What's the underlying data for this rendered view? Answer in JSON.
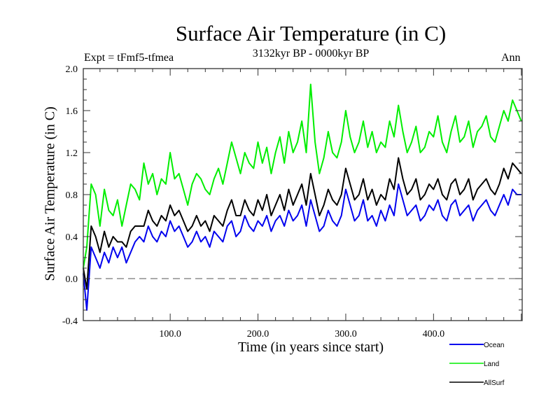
{
  "chart_data": {
    "type": "line",
    "title": "Surface Air Temperature (in C)",
    "subtitle": "3132kyr BP - 0000kyr BP",
    "experiment_label": "Expt = tFmf5-tfmea",
    "season_label": "Ann",
    "xlabel": "Time (in years since start)",
    "ylabel": "Surface Air Temperature (in C)",
    "xlim": [
      1,
      501
    ],
    "ylim": [
      -0.4,
      2.0
    ],
    "xticks": [
      100,
      200,
      300,
      400
    ],
    "xtick_labels": [
      "100.0",
      "200.0",
      "300.0",
      "400.0"
    ],
    "yticks": [
      -0.4,
      0.0,
      0.4,
      0.8,
      1.2,
      1.6,
      2.0
    ],
    "ytick_labels": [
      "-0.4",
      "0.0",
      "0.4",
      "0.8",
      "1.2",
      "1.6",
      "2.0"
    ],
    "reference_line": {
      "y": 0.0,
      "style": "dashed"
    },
    "legend_position": "bottom-right",
    "x": [
      1,
      5,
      10,
      15,
      20,
      25,
      30,
      35,
      40,
      45,
      50,
      55,
      60,
      65,
      70,
      75,
      80,
      85,
      90,
      95,
      100,
      105,
      110,
      115,
      120,
      125,
      130,
      135,
      140,
      145,
      150,
      155,
      160,
      165,
      170,
      175,
      180,
      185,
      190,
      195,
      200,
      205,
      210,
      215,
      220,
      225,
      230,
      235,
      240,
      245,
      250,
      255,
      260,
      265,
      270,
      275,
      280,
      285,
      290,
      295,
      300,
      305,
      310,
      315,
      320,
      325,
      330,
      335,
      340,
      345,
      350,
      355,
      360,
      365,
      370,
      375,
      380,
      385,
      390,
      395,
      400,
      405,
      410,
      415,
      420,
      425,
      430,
      435,
      440,
      445,
      450,
      455,
      460,
      465,
      470,
      475,
      480,
      485,
      490,
      495,
      500
    ],
    "series": [
      {
        "name": "Ocean",
        "color": "#0000ee",
        "values": [
          0.05,
          -0.3,
          0.3,
          0.2,
          0.1,
          0.25,
          0.15,
          0.3,
          0.2,
          0.3,
          0.15,
          0.25,
          0.35,
          0.4,
          0.35,
          0.5,
          0.4,
          0.35,
          0.45,
          0.4,
          0.55,
          0.45,
          0.5,
          0.4,
          0.3,
          0.35,
          0.45,
          0.35,
          0.4,
          0.3,
          0.45,
          0.4,
          0.35,
          0.5,
          0.55,
          0.4,
          0.45,
          0.6,
          0.5,
          0.45,
          0.55,
          0.5,
          0.6,
          0.45,
          0.55,
          0.6,
          0.5,
          0.65,
          0.55,
          0.6,
          0.7,
          0.5,
          0.75,
          0.6,
          0.45,
          0.5,
          0.65,
          0.55,
          0.5,
          0.6,
          0.85,
          0.7,
          0.55,
          0.6,
          0.75,
          0.55,
          0.6,
          0.5,
          0.65,
          0.55,
          0.7,
          0.6,
          0.9,
          0.75,
          0.6,
          0.65,
          0.7,
          0.55,
          0.6,
          0.7,
          0.65,
          0.75,
          0.6,
          0.55,
          0.7,
          0.75,
          0.6,
          0.65,
          0.7,
          0.55,
          0.65,
          0.7,
          0.75,
          0.65,
          0.6,
          0.7,
          0.8,
          0.7,
          0.85,
          0.8,
          0.8
        ]
      },
      {
        "name": "Land",
        "color": "#00ee00",
        "values": [
          0.1,
          0.3,
          0.9,
          0.8,
          0.5,
          0.85,
          0.65,
          0.6,
          0.75,
          0.5,
          0.7,
          0.9,
          0.85,
          0.75,
          1.1,
          0.9,
          1.0,
          0.8,
          0.95,
          0.9,
          1.2,
          0.95,
          1.0,
          0.85,
          0.7,
          0.9,
          1.0,
          0.95,
          0.85,
          0.8,
          0.95,
          1.05,
          0.9,
          1.1,
          1.3,
          1.15,
          1.0,
          1.2,
          1.1,
          1.05,
          1.3,
          1.1,
          1.25,
          1.0,
          1.2,
          1.35,
          1.1,
          1.4,
          1.2,
          1.3,
          1.5,
          1.2,
          1.85,
          1.3,
          1.0,
          1.15,
          1.4,
          1.2,
          1.15,
          1.3,
          1.6,
          1.35,
          1.2,
          1.3,
          1.5,
          1.25,
          1.4,
          1.2,
          1.3,
          1.25,
          1.5,
          1.35,
          1.65,
          1.4,
          1.2,
          1.3,
          1.45,
          1.2,
          1.25,
          1.4,
          1.35,
          1.55,
          1.3,
          1.2,
          1.4,
          1.55,
          1.3,
          1.35,
          1.5,
          1.25,
          1.4,
          1.45,
          1.55,
          1.35,
          1.3,
          1.45,
          1.6,
          1.5,
          1.7,
          1.6,
          1.5
        ]
      },
      {
        "name": "AllSurf",
        "color": "#000000",
        "values": [
          0.1,
          -0.1,
          0.5,
          0.4,
          0.25,
          0.45,
          0.3,
          0.4,
          0.35,
          0.35,
          0.3,
          0.45,
          0.5,
          0.5,
          0.5,
          0.65,
          0.55,
          0.5,
          0.6,
          0.55,
          0.7,
          0.6,
          0.65,
          0.55,
          0.45,
          0.5,
          0.6,
          0.5,
          0.55,
          0.45,
          0.6,
          0.55,
          0.5,
          0.65,
          0.75,
          0.6,
          0.6,
          0.75,
          0.65,
          0.6,
          0.75,
          0.65,
          0.8,
          0.6,
          0.7,
          0.8,
          0.65,
          0.85,
          0.7,
          0.8,
          0.9,
          0.7,
          1.0,
          0.8,
          0.6,
          0.7,
          0.85,
          0.75,
          0.7,
          0.8,
          1.05,
          0.9,
          0.75,
          0.8,
          0.95,
          0.75,
          0.85,
          0.7,
          0.8,
          0.75,
          0.95,
          0.85,
          1.15,
          0.95,
          0.8,
          0.85,
          0.95,
          0.75,
          0.8,
          0.9,
          0.85,
          0.95,
          0.8,
          0.75,
          0.9,
          0.95,
          0.8,
          0.85,
          0.95,
          0.75,
          0.85,
          0.9,
          0.95,
          0.85,
          0.8,
          0.9,
          1.05,
          0.95,
          1.1,
          1.05,
          1.0
        ]
      }
    ]
  }
}
